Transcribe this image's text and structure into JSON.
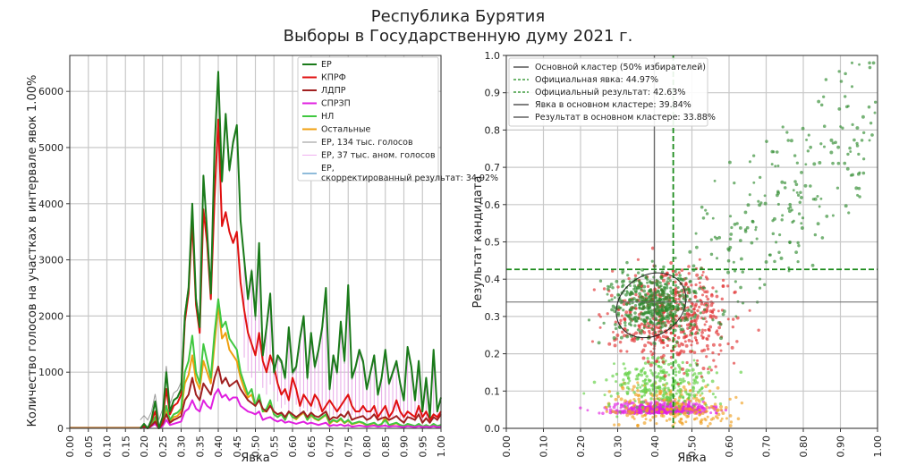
{
  "title": {
    "line1": "Республика Бурятия",
    "line2": "Выборы в Государственную думу 2021 г."
  },
  "chart_data": [
    {
      "type": "line",
      "name": "turnout-histogram",
      "xlabel": "Явка",
      "ylabel": "Количество голосов на участках в интервале явок 1.00%",
      "xlim": [
        0,
        1
      ],
      "ylim": [
        0,
        6640
      ],
      "xticks": [
        "0.00",
        "0.05",
        "0.10",
        "0.15",
        "0.20",
        "0.25",
        "0.30",
        "0.35",
        "0.40",
        "0.45",
        "0.50",
        "0.55",
        "0.60",
        "0.65",
        "0.70",
        "0.75",
        "0.80",
        "0.85",
        "0.90",
        "0.95",
        "1.00"
      ],
      "yticks": [
        "0",
        "1000",
        "2000",
        "3000",
        "4000",
        "5000",
        "6000"
      ],
      "grid": true,
      "legend_position": "top-right",
      "x": [
        0.19,
        0.2,
        0.21,
        0.22,
        0.23,
        0.24,
        0.25,
        0.26,
        0.27,
        0.28,
        0.29,
        0.3,
        0.31,
        0.32,
        0.33,
        0.34,
        0.35,
        0.36,
        0.37,
        0.38,
        0.39,
        0.4,
        0.41,
        0.42,
        0.43,
        0.44,
        0.45,
        0.46,
        0.47,
        0.48,
        0.49,
        0.5,
        0.51,
        0.52,
        0.53,
        0.54,
        0.55,
        0.56,
        0.57,
        0.58,
        0.59,
        0.6,
        0.61,
        0.62,
        0.63,
        0.64,
        0.65,
        0.66,
        0.67,
        0.68,
        0.69,
        0.7,
        0.71,
        0.72,
        0.73,
        0.74,
        0.75,
        0.76,
        0.77,
        0.78,
        0.79,
        0.8,
        0.81,
        0.82,
        0.83,
        0.84,
        0.85,
        0.86,
        0.87,
        0.88,
        0.89,
        0.9,
        0.91,
        0.92,
        0.93,
        0.94,
        0.95,
        0.96,
        0.97,
        0.98,
        0.99,
        1.0
      ],
      "series": [
        {
          "name": "ЕР",
          "color": "#1a7a1a",
          "width": 2,
          "values": [
            0,
            80,
            0,
            150,
            480,
            0,
            200,
            1000,
            300,
            500,
            550,
            700,
            2000,
            2500,
            4000,
            2300,
            1800,
            4500,
            3500,
            2400,
            5000,
            6350,
            4400,
            5600,
            4600,
            5100,
            5400,
            3700,
            3000,
            2300,
            2800,
            2000,
            3300,
            1300,
            1800,
            2400,
            1000,
            1300,
            1200,
            900,
            1800,
            1000,
            1100,
            1600,
            2000,
            900,
            1700,
            1100,
            1400,
            1800,
            2500,
            700,
            1300,
            1000,
            1900,
            1200,
            2550,
            900,
            1100,
            1400,
            1200,
            700,
            1000,
            1300,
            600,
            900,
            1400,
            800,
            1000,
            1200,
            800,
            500,
            1450,
            1100,
            500,
            1200,
            300,
            900,
            200,
            1400,
            300,
            550
          ]
        },
        {
          "name": "КПРФ",
          "color": "#e01010",
          "width": 2,
          "values": [
            0,
            60,
            0,
            120,
            300,
            0,
            150,
            700,
            250,
            400,
            450,
            600,
            1900,
            2400,
            3700,
            2200,
            1700,
            3900,
            3300,
            2300,
            4100,
            5500,
            3600,
            3850,
            3500,
            3300,
            3500,
            2600,
            2100,
            1700,
            1500,
            1300,
            1700,
            1200,
            1000,
            1300,
            1100,
            800,
            600,
            700,
            500,
            900,
            700,
            400,
            600,
            500,
            400,
            600,
            500,
            300,
            400,
            500,
            400,
            300,
            400,
            500,
            600,
            400,
            300,
            300,
            400,
            300,
            300,
            400,
            200,
            300,
            400,
            200,
            300,
            500,
            300,
            200,
            300,
            250,
            200,
            400,
            200,
            300,
            150,
            250,
            200,
            300
          ]
        },
        {
          "name": "ЛДПР",
          "color": "#a02020",
          "width": 2,
          "values": [
            0,
            30,
            0,
            50,
            120,
            0,
            80,
            250,
            100,
            150,
            180,
            220,
            500,
            600,
            900,
            600,
            500,
            800,
            700,
            600,
            900,
            1100,
            800,
            900,
            750,
            800,
            850,
            700,
            600,
            500,
            450,
            400,
            500,
            350,
            300,
            400,
            300,
            250,
            280,
            200,
            300,
            250,
            200,
            250,
            300,
            200,
            280,
            220,
            200,
            250,
            300,
            150,
            200,
            180,
            250,
            200,
            300,
            150,
            180,
            200,
            220,
            150,
            180,
            250,
            150,
            180,
            200,
            150,
            180,
            220,
            150,
            100,
            200,
            180,
            150,
            250,
            100,
            180,
            100,
            200,
            150,
            250
          ]
        },
        {
          "name": "СПРЗП",
          "color": "#e020e0",
          "width": 2,
          "values": [
            0,
            20,
            0,
            40,
            80,
            0,
            40,
            150,
            60,
            80,
            100,
            120,
            300,
            350,
            500,
            350,
            300,
            500,
            400,
            350,
            600,
            700,
            550,
            600,
            500,
            550,
            550,
            400,
            350,
            300,
            280,
            250,
            300,
            150,
            180,
            200,
            150,
            120,
            150,
            100,
            120,
            100,
            80,
            100,
            120,
            80,
            100,
            80,
            60,
            80,
            100,
            40,
            60,
            50,
            70,
            40,
            60,
            30,
            40,
            50,
            40,
            30,
            40,
            50,
            30,
            40,
            50,
            30,
            40,
            40,
            30,
            20,
            40,
            30,
            20,
            40,
            20,
            30,
            20,
            40,
            20,
            30
          ]
        },
        {
          "name": "НЛ",
          "color": "#40c840",
          "width": 2,
          "values": [
            0,
            40,
            0,
            80,
            200,
            0,
            120,
            400,
            150,
            250,
            280,
            350,
            1000,
            1200,
            1650,
            1000,
            800,
            1500,
            1200,
            900,
            1700,
            2300,
            1800,
            1900,
            1600,
            1500,
            1400,
            1000,
            800,
            600,
            700,
            400,
            600,
            300,
            350,
            500,
            250,
            200,
            250,
            150,
            300,
            200,
            180,
            250,
            300,
            150,
            250,
            180,
            150,
            200,
            250,
            100,
            150,
            120,
            180,
            100,
            150,
            80,
            100,
            120,
            100,
            60,
            80,
            100,
            50,
            80,
            150,
            60,
            80,
            100,
            60,
            40,
            80,
            60,
            40,
            80,
            30,
            60,
            30,
            80,
            40,
            60
          ]
        },
        {
          "name": "Остальные",
          "color": "#f0a010",
          "width": 2,
          "values": [
            0,
            30,
            0,
            60,
            150,
            0,
            90,
            300,
            120,
            200,
            220,
            300,
            800,
            950,
            1300,
            850,
            700,
            1200,
            1000,
            800,
            1500,
            2200,
            1600,
            1700,
            1400,
            1300,
            1200,
            900,
            700,
            550,
            600,
            400,
            550,
            300,
            300,
            450,
            250,
            200,
            250,
            150,
            300,
            200,
            160,
            230,
            280,
            150,
            230,
            170,
            140,
            190,
            240,
            80,
            140,
            110,
            160,
            90,
            140,
            70,
            90,
            110,
            90,
            50,
            70,
            90,
            40,
            70,
            200,
            50,
            70,
            90,
            50,
            30,
            70,
            50,
            30,
            70,
            30,
            50,
            30,
            70,
            30,
            50
          ]
        }
      ],
      "legend": [
        {
          "label": "ЕР",
          "color": "#1a7a1a",
          "style": "solid-thick"
        },
        {
          "label": "КПРФ",
          "color": "#e01010",
          "style": "solid-thick"
        },
        {
          "label": "ЛДПР",
          "color": "#a02020",
          "style": "solid-thick"
        },
        {
          "label": "СПРЗП",
          "color": "#e020e0",
          "style": "solid-thick"
        },
        {
          "label": "НЛ",
          "color": "#40c840",
          "style": "solid-thick"
        },
        {
          "label": "Остальные",
          "color": "#f0a010",
          "style": "solid-thick"
        },
        {
          "label": "ЕР, 134 тыс. голосов",
          "color": "#909090",
          "style": "solid-thin"
        },
        {
          "label": "ЕР, 37 тыс. аном. голосов",
          "color": "#f0b0f0",
          "style": "solid-thin"
        },
        {
          "label": "ЕР, скорректированный результат: 34.92%",
          "color": "#1f77b4",
          "style": "solid-thin"
        }
      ]
    },
    {
      "type": "scatter",
      "name": "turnout-result-scatter",
      "xlabel": "Явка",
      "ylabel": "Результат кандидата",
      "xlim": [
        0,
        1
      ],
      "ylim": [
        0,
        1
      ],
      "xticks": [
        "0.00",
        "0.10",
        "0.20",
        "0.30",
        "0.40",
        "0.50",
        "0.60",
        "0.70",
        "0.80",
        "0.90",
        "1.00"
      ],
      "yticks": [
        "0.0",
        "0.1",
        "0.2",
        "0.3",
        "0.4",
        "0.5",
        "0.6",
        "0.7",
        "0.8",
        "0.9",
        "1.0"
      ],
      "grid": true,
      "legend_position": "top-left",
      "official_turnout": 0.4497,
      "official_result": 0.4263,
      "cluster_turnout": 0.3984,
      "cluster_result": 0.3388,
      "cluster_ellipse": {
        "center": [
          0.39,
          0.33
        ],
        "width": 0.2,
        "height": 0.16,
        "angle_deg": 35
      },
      "point_groups": [
        {
          "name": "ЕР",
          "color": "#2e8b2e",
          "turnout_range": [
            0.25,
            1.0
          ],
          "result_center": 0.45
        },
        {
          "name": "КПРФ",
          "color": "#e03030",
          "turnout_range": [
            0.2,
            1.0
          ],
          "result_center": 0.28
        },
        {
          "name": "НЛ",
          "color": "#60d040",
          "turnout_range": [
            0.2,
            0.9
          ],
          "result_center": 0.1
        },
        {
          "name": "Остальные",
          "color": "#f0a020",
          "turnout_range": [
            0.2,
            0.9
          ],
          "result_center": 0.08
        },
        {
          "name": "СПРЗП",
          "color": "#e020e0",
          "turnout_range": [
            0.2,
            1.0
          ],
          "result_center": 0.04
        }
      ],
      "legend": [
        {
          "label": "Основной кластер (50% избирателей)",
          "color": "#333333",
          "style": "solid"
        },
        {
          "label": "Официальная явка: 44.97%",
          "color": "#1a8a1a",
          "style": "dashed"
        },
        {
          "label": "Официальный результат: 42.63%",
          "color": "#1a8a1a",
          "style": "dashed"
        },
        {
          "label": "Явка в основном кластере: 39.84%",
          "color": "#333333",
          "style": "solid"
        },
        {
          "label": "Результат в основном кластере: 33.88%",
          "color": "#777777",
          "style": "solid"
        }
      ]
    }
  ]
}
